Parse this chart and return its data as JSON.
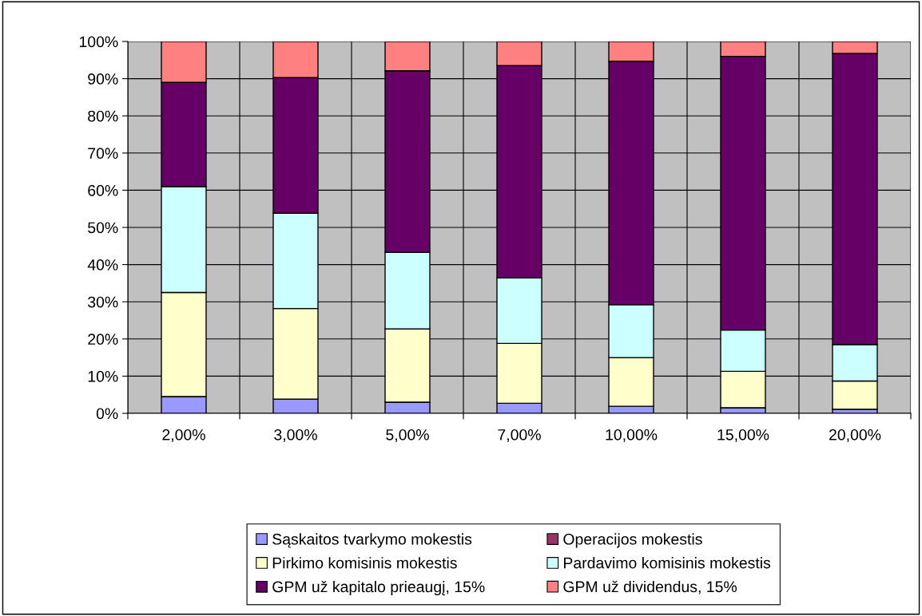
{
  "chart_data": {
    "type": "bar",
    "stacked": true,
    "categories": [
      "2,00%",
      "3,00%",
      "5,00%",
      "7,00%",
      "10,00%",
      "15,00%",
      "20,00%"
    ],
    "series": [
      {
        "name": "Sąskaitos tvarkymo mokestis",
        "color": "#9999ff",
        "values": [
          4.5,
          3.8,
          3.0,
          2.7,
          1.9,
          1.5,
          1.1
        ]
      },
      {
        "name": "Operacijos mokestis",
        "color": "#993366",
        "values": [
          0,
          0,
          0,
          0,
          0,
          0,
          0
        ]
      },
      {
        "name": "Pirkimo komisinis mokestis",
        "color": "#ffffcc",
        "values": [
          28,
          24.4,
          19.7,
          16.1,
          13.1,
          9.8,
          7.6
        ]
      },
      {
        "name": "Pardavimo komisinis mokestis",
        "color": "#ccffff",
        "values": [
          28.5,
          25.6,
          20.6,
          17.6,
          14.2,
          11.1,
          9.8
        ]
      },
      {
        "name": "GPM už kapitalo prieaugį, 15%",
        "color": "#660066",
        "values": [
          28,
          36.5,
          48.8,
          57.1,
          65.5,
          73.6,
          78.3
        ]
      },
      {
        "name": "GPM už dividendus, 15%",
        "color": "#ff8080",
        "values": [
          11,
          9.7,
          7.9,
          6.5,
          5.3,
          4.0,
          3.2
        ]
      }
    ],
    "ylim": [
      0,
      100
    ],
    "yticks": [
      {
        "value": 0,
        "label": "0%"
      },
      {
        "value": 10,
        "label": "10%"
      },
      {
        "value": 20,
        "label": "20%"
      },
      {
        "value": 30,
        "label": "30%"
      },
      {
        "value": 40,
        "label": "40%"
      },
      {
        "value": 50,
        "label": "50%"
      },
      {
        "value": 60,
        "label": "60%"
      },
      {
        "value": 70,
        "label": "70%"
      },
      {
        "value": 80,
        "label": "80%"
      },
      {
        "value": 90,
        "label": "90%"
      },
      {
        "value": 100,
        "label": "100%"
      }
    ],
    "grid": true,
    "legend": "bottom"
  }
}
